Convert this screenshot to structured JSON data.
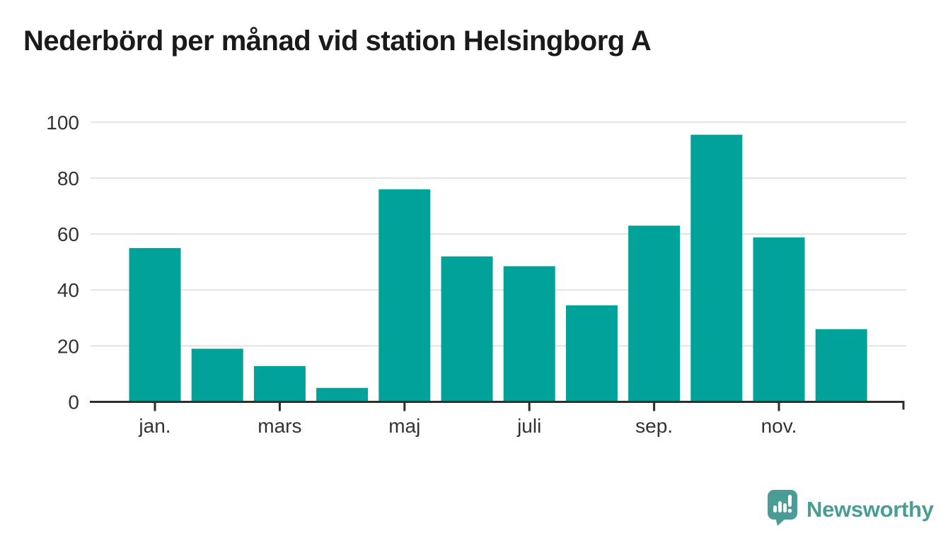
{
  "title": "Nederbörd per månad vid station Helsingborg A",
  "branding": {
    "logo_text": "Newsworthy",
    "logo_color": "#4a9c96",
    "logo_icon": "newsworthy-speech-bubble-bar-chart-icon"
  },
  "chart_data": {
    "type": "bar",
    "title": "Nederbörd per månad vid station Helsingborg A",
    "categories": [
      "jan.",
      "",
      "mars",
      "",
      "maj",
      "",
      "juli",
      "",
      "sep.",
      "",
      "nov.",
      ""
    ],
    "values": [
      55,
      19,
      12.8,
      5,
      76,
      52,
      48.5,
      34.5,
      63,
      95.5,
      58.8,
      26
    ],
    "x_tick_indices": [
      0,
      2,
      4,
      6,
      8,
      10
    ],
    "x_tick_labels": [
      "jan.",
      "mars",
      "maj",
      "juli",
      "sep.",
      "nov."
    ],
    "y_ticks": [
      0,
      20,
      40,
      60,
      80,
      100
    ],
    "ylim": [
      0,
      100
    ],
    "bar_color": "#00a29a",
    "grid_color": "#e2e2e2",
    "axis_color": "#2d2d2d",
    "tick_label_color": "#333333",
    "grid": "horizontal",
    "legend": "none"
  }
}
